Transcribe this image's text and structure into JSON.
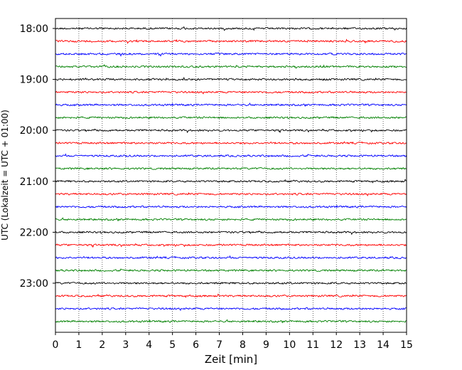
{
  "chart_data": {
    "type": "line",
    "chart_kind": "helicorder (seismogram drum plot)",
    "title": "",
    "xlabel": "Zeit  [min]",
    "ylabel": "UTC (Lokalzeit = UTC + 01:00)",
    "xlim": [
      0,
      15
    ],
    "x_ticks": [
      "0",
      "1",
      "2",
      "3",
      "4",
      "5",
      "6",
      "7",
      "8",
      "9",
      "10",
      "11",
      "12",
      "13",
      "14",
      "15"
    ],
    "y_ticks": [
      "18:00",
      "19:00",
      "20:00",
      "21:00",
      "22:00",
      "23:00"
    ],
    "y_axis": "time of day (UTC), increasing downward",
    "trace_interval_minutes": 15,
    "trace_count": 24,
    "first_trace_start": "18:00",
    "last_trace_start": "23:45",
    "trace_colors": [
      "#000000",
      "#ff0000",
      "#0000ff",
      "#008000"
    ],
    "trace_color_cycle": "black, red, blue, green (repeating each hour)",
    "grid": "vertical dotted lines at every minute",
    "legend": "none"
  }
}
